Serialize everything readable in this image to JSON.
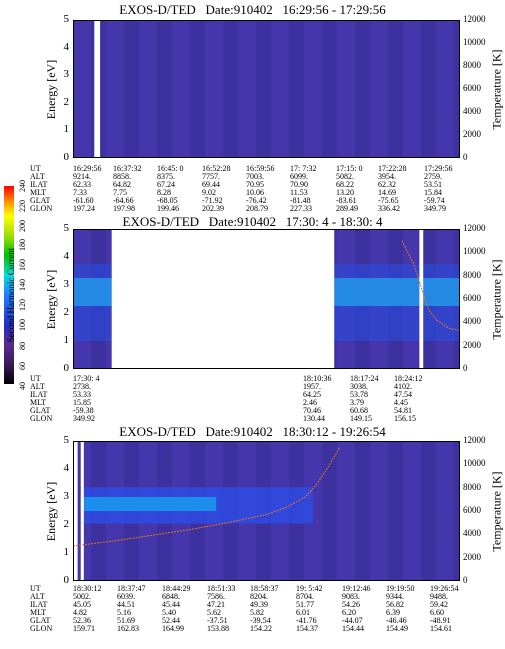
{
  "colorbar": {
    "label": "Second Harmonic Current",
    "ticks": [
      "40",
      "60",
      "80",
      "100",
      "120",
      "140",
      "160",
      "180",
      "200",
      "220",
      "240"
    ]
  },
  "chart_data": [
    {
      "type": "heatmap",
      "title": "EXOS-D/TED   Date:910402   16:29:56 - 17:29:56",
      "ylabel": "Energy [eV]",
      "y2label": "Temperature [K]",
      "ylim": [
        0,
        5
      ],
      "y2lim": [
        0,
        12000
      ],
      "yticks": [
        "0",
        "1",
        "2",
        "3",
        "4",
        "5"
      ],
      "y2ticks": [
        "0",
        "2000",
        "4000",
        "6000",
        "8000",
        "10000",
        "12000"
      ],
      "rows": [
        {
          "name": "UT",
          "values": [
            "16:29:56",
            "16:37:32",
            "16:45: 0",
            "16:52:28",
            "16:59:56",
            "17: 7:32",
            "17:15: 0",
            "17:22:28",
            "17:29:56"
          ]
        },
        {
          "name": "ALT",
          "values": [
            "9214.",
            "8858.",
            "8375.",
            "7757.",
            "7003.",
            "6099.",
            "5082.",
            "3954.",
            "2759."
          ]
        },
        {
          "name": "ILAT",
          "values": [
            "62.33",
            "64.82",
            "67.24",
            "69.44",
            "70.95",
            "70.90",
            "68.22",
            "62.32",
            "53.51"
          ]
        },
        {
          "name": "MLT",
          "values": [
            "7.33",
            "7.75",
            "8.28",
            "9.02",
            "10.06",
            "11.53",
            "13.20",
            "14.69",
            "15.84"
          ]
        },
        {
          "name": "GLAT",
          "values": [
            "-61.60",
            "-64.66",
            "-68.05",
            "-71.92",
            "-76.42",
            "-81.48",
            "-83.61",
            "-75.65",
            "-59.74"
          ]
        },
        {
          "name": "GLON",
          "values": [
            "197.24",
            "197.98",
            "199.46",
            "202.39",
            "208.79",
            "227.33",
            "289.49",
            "336.42",
            "349.79"
          ]
        }
      ],
      "temperature_curve": [],
      "gaps": [
        [
          0.055,
          0.07
        ]
      ]
    },
    {
      "type": "heatmap",
      "title": "EXOS-D/TED   Date:910402   17:30: 4 - 18:30: 4",
      "ylabel": "Energy [eV]",
      "y2label": "Temperature [K]",
      "ylim": [
        0,
        5
      ],
      "y2lim": [
        0,
        12000
      ],
      "yticks": [
        "0",
        "1",
        "2",
        "3",
        "4",
        "5"
      ],
      "y2ticks": [
        "0",
        "2000",
        "4000",
        "6000",
        "8000",
        "10000",
        "12000"
      ],
      "rows": [
        {
          "name": "UT",
          "values": [
            "17:30: 4",
            "",
            "",
            "",
            "",
            "18:10:36",
            "18:17:24",
            "18:24:12"
          ]
        },
        {
          "name": "ALT",
          "values": [
            "2738.",
            "",
            "",
            "",
            "",
            "1957.",
            "3038.",
            "4102."
          ]
        },
        {
          "name": "ILAT",
          "values": [
            "53.33",
            "",
            "",
            "",
            "",
            "64.25",
            "53.78",
            "47.54"
          ]
        },
        {
          "name": "MLT",
          "values": [
            "15.85",
            "",
            "",
            "",
            "",
            "2.46",
            "3.79",
            "4.45"
          ]
        },
        {
          "name": "GLAT",
          "values": [
            "-59.38",
            "",
            "",
            "",
            "",
            "70.46",
            "60.68",
            "54.81"
          ]
        },
        {
          "name": "GLON",
          "values": [
            "349.92",
            "",
            "",
            "",
            "",
            "130.44",
            "149.15",
            "156.15"
          ]
        }
      ],
      "temperature_curve": [
        [
          0.85,
          11000
        ],
        [
          0.88,
          9000
        ],
        [
          0.9,
          7000
        ],
        [
          0.92,
          5000
        ],
        [
          0.94,
          4200
        ],
        [
          0.97,
          3500
        ],
        [
          1.0,
          3300
        ]
      ],
      "gaps": [
        [
          0.1,
          0.675
        ],
        [
          0.895,
          0.905
        ]
      ]
    },
    {
      "type": "heatmap",
      "title": "EXOS-D/TED   Date:910402   18:30:12 - 19:26:54",
      "ylabel": "Energy [eV]",
      "y2label": "Temperature [K]",
      "ylim": [
        0,
        5
      ],
      "y2lim": [
        0,
        12000
      ],
      "yticks": [
        "0",
        "1",
        "2",
        "3",
        "4",
        "5"
      ],
      "y2ticks": [
        "0",
        "2000",
        "4000",
        "6000",
        "8000",
        "10000",
        "12000"
      ],
      "rows": [
        {
          "name": "UT",
          "values": [
            "18:30:12",
            "18:37:47",
            "18:44:29",
            "18:51:33",
            "18:58:37",
            "19: 5:42",
            "19:12:46",
            "19:19:50",
            "19:26:54"
          ]
        },
        {
          "name": "ALT",
          "values": [
            "5002.",
            "6039.",
            "6848.",
            "7586.",
            "8204.",
            "8704.",
            "9083.",
            "9344.",
            "9488."
          ]
        },
        {
          "name": "ILAT",
          "values": [
            "45.05",
            "44.51",
            "45.44",
            "47.21",
            "49.39",
            "51.77",
            "54.26",
            "56.82",
            "59.42"
          ]
        },
        {
          "name": "MLT",
          "values": [
            "4.82",
            "5.16",
            "5.40",
            "5.62",
            "5.82",
            "6.01",
            "6.20",
            "6.39",
            "6.60"
          ]
        },
        {
          "name": "GLAT",
          "values": [
            "52.36",
            "51.69",
            "52.44",
            "-37.51",
            "-39.54",
            "-41.76",
            "-44.07",
            "-46.46",
            "-48.91"
          ]
        },
        {
          "name": "GLON",
          "values": [
            "159.71",
            "162.83",
            "164.99",
            "153.88",
            "154.22",
            "154.37",
            "154.44",
            "154.49",
            "154.61"
          ]
        }
      ],
      "temperature_curve": [
        [
          0.0,
          3000
        ],
        [
          0.1,
          3400
        ],
        [
          0.2,
          3900
        ],
        [
          0.3,
          4400
        ],
        [
          0.4,
          5000
        ],
        [
          0.5,
          5700
        ],
        [
          0.55,
          6300
        ],
        [
          0.6,
          7200
        ],
        [
          0.63,
          8300
        ],
        [
          0.66,
          9800
        ],
        [
          0.69,
          11500
        ]
      ],
      "gaps": [
        [
          0.0,
          0.012
        ],
        [
          0.02,
          0.028
        ]
      ]
    }
  ]
}
